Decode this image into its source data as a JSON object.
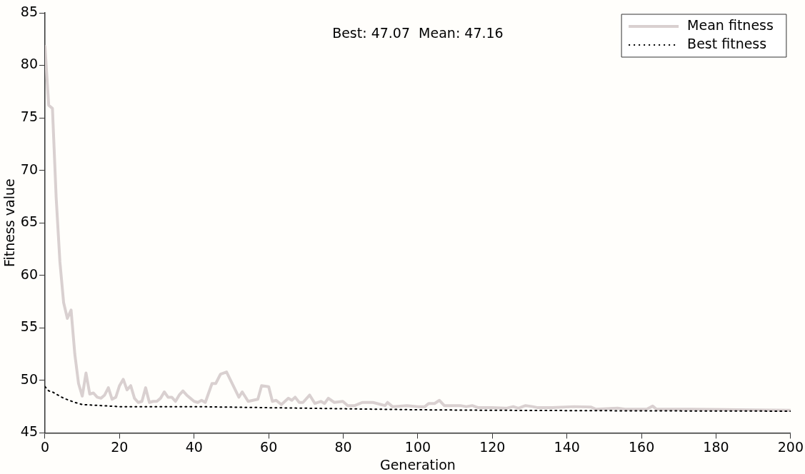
{
  "chart_data": {
    "type": "line",
    "xlabel": "Generation",
    "ylabel": "Fitness value",
    "xlim": [
      0,
      200
    ],
    "xticks": [
      0,
      20,
      40,
      60,
      80,
      100,
      120,
      140,
      160,
      180,
      200
    ],
    "ylim": [
      45,
      85
    ],
    "yticks": [
      45,
      50,
      55,
      60,
      65,
      70,
      75,
      80,
      85
    ],
    "annotations": [
      "Best: 47.07  Mean: 47.16"
    ],
    "legend": "top right",
    "grid": false,
    "marker": "none",
    "series": [
      {
        "name": "Mean fitness",
        "color": "#d9d0d0",
        "line_style": "solid",
        "x": [
          0,
          1,
          2,
          3,
          4,
          5,
          6,
          7,
          8,
          9,
          10,
          11,
          12,
          13,
          14,
          15,
          16,
          17,
          18,
          19,
          20,
          21,
          22,
          23,
          24,
          25,
          26,
          27,
          28,
          29,
          30,
          31,
          32,
          33,
          34,
          35,
          36,
          37,
          38,
          39,
          40,
          41,
          42,
          43,
          44.8,
          45.8,
          47.1,
          48.7,
          52,
          52.9,
          54.5,
          57.1,
          58.1,
          60,
          61,
          62,
          63.4,
          65.3,
          66.2,
          67.1,
          68.2,
          69.2,
          71,
          72.4,
          74,
          75,
          76,
          77.6,
          79.9,
          81.2,
          83.1,
          85.1,
          88,
          91.2,
          91.9,
          93.2,
          97.1,
          100,
          101.9,
          102.9,
          104.5,
          105.8,
          107.1,
          111.4,
          113,
          114.6,
          116.2,
          119.8,
          123.7,
          125.6,
          127,
          128.9,
          130.8,
          132.2,
          136,
          141.9,
          146.5,
          147.8,
          153.6,
          155.6,
          161.4,
          163,
          164,
          173.2,
          186.2,
          200
        ],
        "values": [
          81.8,
          76.2,
          75.9,
          67.4,
          61.3,
          57.4,
          55.9,
          56.7,
          52.5,
          49.7,
          48.5,
          50.7,
          48.7,
          48.8,
          48.4,
          48.3,
          48.6,
          49.3,
          48.2,
          48.4,
          49.5,
          50.1,
          49.1,
          49.5,
          48.3,
          47.9,
          48,
          49.3,
          47.9,
          48,
          48,
          48.3,
          48.9,
          48.4,
          48.4,
          48,
          48.6,
          49,
          48.6,
          48.3,
          48,
          47.9,
          48.1,
          47.9,
          49.7,
          49.7,
          50.6,
          50.8,
          48.4,
          48.9,
          48,
          48.2,
          49.5,
          49.4,
          48,
          48.1,
          47.7,
          48.3,
          48.1,
          48.4,
          47.9,
          47.9,
          48.6,
          47.8,
          48,
          47.8,
          48.3,
          47.9,
          48,
          47.6,
          47.6,
          47.9,
          47.9,
          47.6,
          47.9,
          47.5,
          47.6,
          47.5,
          47.5,
          47.8,
          47.8,
          48.1,
          47.6,
          47.6,
          47.5,
          47.6,
          47.4,
          47.4,
          47.35,
          47.5,
          47.35,
          47.6,
          47.5,
          47.4,
          47.4,
          47.5,
          47.45,
          47.25,
          47.35,
          47.25,
          47.25,
          47.55,
          47.25,
          47.25,
          47.2,
          47.16
        ]
      },
      {
        "name": "Best fitness",
        "color": "#000000",
        "line_style": "dotted",
        "x": [
          0,
          1,
          2,
          5,
          8,
          10,
          15,
          20,
          40,
          60,
          80,
          100,
          120,
          160,
          200
        ],
        "values": [
          49.4,
          49,
          48.9,
          48.3,
          47.9,
          47.7,
          47.6,
          47.5,
          47.5,
          47.4,
          47.3,
          47.2,
          47.15,
          47.1,
          47.07
        ]
      }
    ]
  }
}
